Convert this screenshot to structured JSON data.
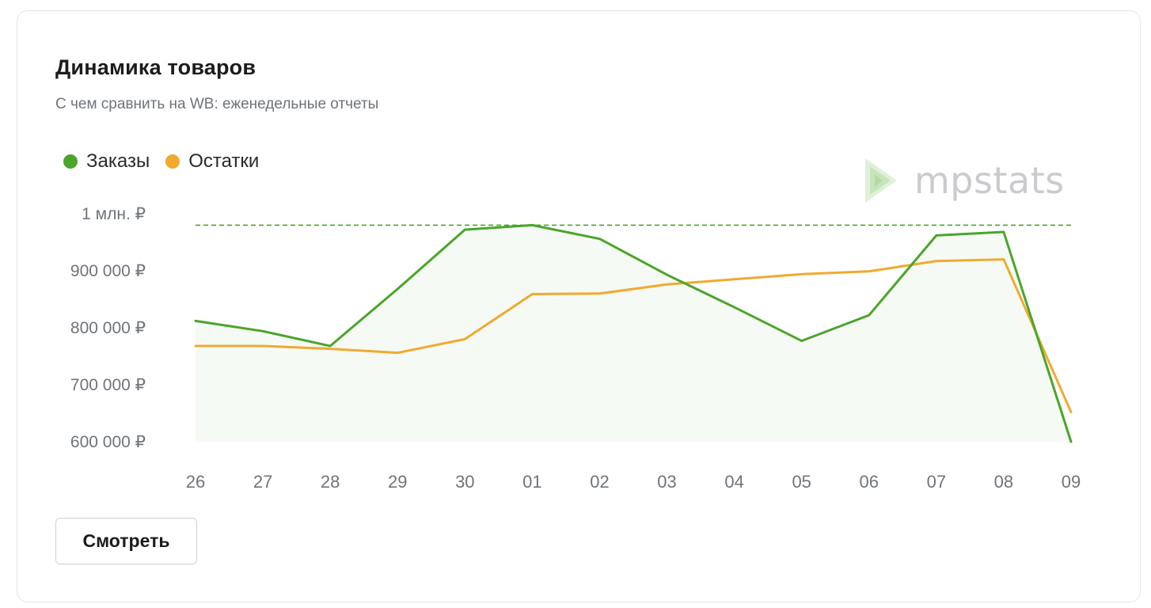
{
  "card": {
    "title": "Динамика товаров",
    "subtitle": "С чем сравнить на WB: еженедельные отчеты",
    "button_label": "Смотреть"
  },
  "logo": {
    "text": "mpstats",
    "icon": "play-triangle-logo-icon"
  },
  "colors": {
    "orders": "#4aa52a",
    "stock": "#f0aa2f",
    "area_fill": "#f6faf4",
    "axis_text": "#6f747b",
    "reference_line": "#4aa52a"
  },
  "chart_data": {
    "type": "line",
    "title": "",
    "xlabel": "",
    "ylabel": "",
    "categories": [
      "26",
      "27",
      "28",
      "29",
      "30",
      "01",
      "02",
      "03",
      "04",
      "05",
      "06",
      "07",
      "08",
      "09"
    ],
    "y_ticks": [
      {
        "value": 600000,
        "label": "600 000 ₽"
      },
      {
        "value": 700000,
        "label": "700 000 ₽"
      },
      {
        "value": 800000,
        "label": "800 000 ₽"
      },
      {
        "value": 900000,
        "label": "900 000 ₽"
      },
      {
        "value": 1000000,
        "label": "1 млн. ₽"
      }
    ],
    "ylim": [
      600000,
      1000000
    ],
    "grid": false,
    "legend_position": "top-left",
    "series": [
      {
        "name": "Заказы",
        "color": "#4aa52a",
        "filled_area": true,
        "values": [
          812000,
          794000,
          768000,
          868000,
          972000,
          980000,
          956000,
          893000,
          836000,
          777000,
          822000,
          962000,
          968000,
          600000
        ]
      },
      {
        "name": "Остатки",
        "color": "#f0aa2f",
        "filled_area": false,
        "values": [
          768000,
          768000,
          763000,
          756000,
          780000,
          859000,
          860000,
          876000,
          885000,
          894000,
          899000,
          917000,
          920000,
          652000
        ]
      }
    ],
    "reference_line": {
      "style": "dashed",
      "color": "#4aa52a",
      "value": 980000
    }
  }
}
